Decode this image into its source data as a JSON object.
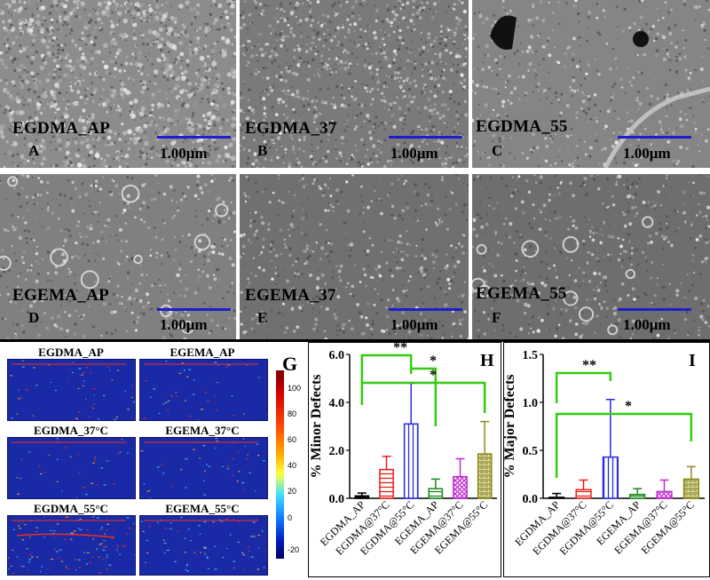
{
  "sem_panels": [
    {
      "name": "EGDMA_AP",
      "letter": "A",
      "scale": "1.00μm"
    },
    {
      "name": "EGDMA_37",
      "letter": "B",
      "scale": "1.00μm"
    },
    {
      "name": "EGDMA_55",
      "letter": "C",
      "scale": "1.00μm"
    },
    {
      "name": "EGEMA_AP",
      "letter": "D",
      "scale": "1.00μm"
    },
    {
      "name": "EGEMA_37",
      "letter": "E",
      "scale": "1.00μm"
    },
    {
      "name": "EGEMA_55",
      "letter": "F",
      "scale": "1.00μm"
    }
  ],
  "heatmap_panel": {
    "letter": "G",
    "maps": [
      "EGDMA_AP",
      "EGEMA_AP",
      "EGDMA_37°C",
      "EGEMA_37°C",
      "EGDMA_55°C",
      "EGEMA_55°C"
    ],
    "colorbar_ticks": [
      "100",
      "80",
      "60",
      "40",
      "20",
      "0",
      "-20"
    ],
    "colors": {
      "background": "#1a2aa6",
      "hot": "#e8321e",
      "warm": "#ffb020",
      "cool": "#48c8ff"
    }
  },
  "chart_data": [
    {
      "type": "bar",
      "letter": "H",
      "ylabel": "% Minor Defects",
      "categories": [
        "EGDMA_AP",
        "EGDMA@37°C",
        "EGDMA@55°C",
        "EGEMA_AP",
        "EGEMA@37°C",
        "EGEMA@55°C"
      ],
      "values": [
        0.1,
        1.2,
        3.1,
        0.4,
        0.9,
        1.85
      ],
      "errors": [
        0.12,
        0.55,
        1.7,
        0.4,
        0.75,
        1.35
      ],
      "ylim": [
        0,
        6.0
      ],
      "yticks": [
        "0.0",
        "2.0",
        "4.0",
        "6.0"
      ],
      "colors": [
        "#000000",
        "#e8201a",
        "#2b2be0",
        "#1a8a1a",
        "#c02ad0",
        "#8f8a1a"
      ],
      "patterns": [
        "solid",
        "hlines",
        "vlines",
        "hlines",
        "crosshatch",
        "brick"
      ],
      "significance": [
        {
          "from": 0,
          "to": 2,
          "label": "**"
        },
        {
          "from": 2,
          "to": 3,
          "label": "*"
        },
        {
          "from": 0,
          "to": 5,
          "label": "*"
        }
      ],
      "sig_color": "#33cc11"
    },
    {
      "type": "bar",
      "letter": "I",
      "ylabel": "% Major Defects",
      "categories": [
        "EGDMA_AP",
        "EGDMA@37°C",
        "EGDMA@55°C",
        "EGEMA_AP",
        "EGEMA@37°C",
        "EGEMA@55°C"
      ],
      "values": [
        0.01,
        0.09,
        0.43,
        0.04,
        0.07,
        0.2
      ],
      "errors": [
        0.04,
        0.1,
        0.6,
        0.06,
        0.12,
        0.13
      ],
      "ylim": [
        0,
        1.5
      ],
      "yticks": [
        "0.0",
        "0.5",
        "1.0",
        "1.5"
      ],
      "colors": [
        "#000000",
        "#e8201a",
        "#2b2be0",
        "#1a8a1a",
        "#c02ad0",
        "#8f8a1a"
      ],
      "patterns": [
        "solid",
        "hlines",
        "vlines",
        "hlines",
        "crosshatch",
        "brick"
      ],
      "significance": [
        {
          "from": 0,
          "to": 2,
          "label": "**"
        },
        {
          "from": 0,
          "to": 5,
          "label": "*"
        }
      ],
      "sig_color": "#33cc11"
    }
  ]
}
